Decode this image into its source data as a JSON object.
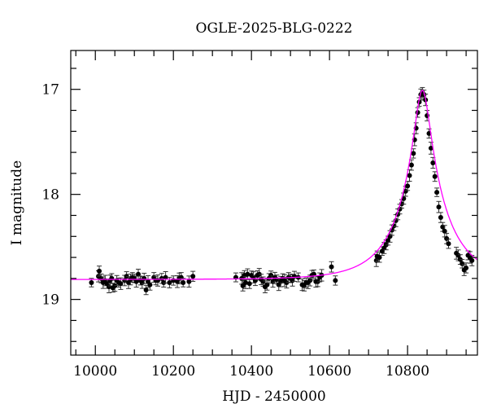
{
  "chart_data": {
    "type": "scatter",
    "title": "OGLE-2025-BLG-0222",
    "xlabel": "HJD - 2450000",
    "ylabel": "I magnitude",
    "xlim": [
      9937,
      10979
    ],
    "ylim": [
      19.53,
      16.63
    ],
    "y_inverted": true,
    "x_ticks": [
      10000,
      10200,
      10400,
      10600,
      10800
    ],
    "x_tick_labels": [
      "10000",
      "10200",
      "10400",
      "10600",
      "10800"
    ],
    "y_ticks": [
      17,
      18,
      19
    ],
    "y_tick_labels": [
      "17",
      "18",
      "19"
    ],
    "grid": false,
    "colors": {
      "points": "#000000",
      "model": "#ff00ff",
      "errorbars": "#333333"
    },
    "model": {
      "type": "point-lens",
      "t0": 10838,
      "u0": 0.16,
      "tE": 120,
      "fs": 0.8,
      "baseline_mag": 18.81
    },
    "points": {
      "x": [
        9990,
        10008,
        10010,
        10015,
        10020,
        10025,
        10030,
        10035,
        10038,
        10042,
        10045,
        10050,
        10055,
        10060,
        10065,
        10075,
        10080,
        10085,
        10090,
        10095,
        10100,
        10105,
        10110,
        10115,
        10120,
        10125,
        10130,
        10135,
        10140,
        10150,
        10155,
        10160,
        10170,
        10175,
        10180,
        10190,
        10200,
        10210,
        10215,
        10220,
        10225,
        10240,
        10250,
        10360,
        10375,
        10378,
        10382,
        10385,
        10390,
        10395,
        10400,
        10405,
        10410,
        10415,
        10420,
        10425,
        10430,
        10435,
        10440,
        10445,
        10450,
        10455,
        10460,
        10465,
        10470,
        10475,
        10480,
        10485,
        10490,
        10495,
        10500,
        10505,
        10510,
        10520,
        10530,
        10535,
        10540,
        10545,
        10550,
        10555,
        10560,
        10565,
        10570,
        10575,
        10580,
        10605,
        10615,
        10720,
        10722,
        10728,
        10735,
        10740,
        10745,
        10750,
        10755,
        10760,
        10765,
        10770,
        10775,
        10780,
        10785,
        10790,
        10795,
        10800,
        10805,
        10810,
        10815,
        10818,
        10822,
        10826,
        10830,
        10834,
        10838,
        10842,
        10846,
        10850,
        10855,
        10860,
        10865,
        10870,
        10875,
        10880,
        10885,
        10890,
        10895,
        10900,
        10905,
        10925,
        10930,
        10935,
        10940,
        10945,
        10950,
        10955,
        10960,
        10965
      ],
      "y": [
        18.84,
        18.78,
        18.73,
        18.8,
        18.84,
        18.82,
        18.85,
        18.88,
        18.82,
        18.8,
        18.89,
        18.87,
        18.82,
        18.84,
        18.85,
        18.82,
        18.78,
        18.84,
        18.81,
        18.79,
        18.8,
        18.83,
        18.76,
        18.82,
        18.84,
        18.8,
        18.91,
        18.83,
        18.86,
        18.79,
        18.82,
        18.82,
        18.8,
        18.84,
        18.79,
        18.84,
        18.82,
        18.83,
        18.8,
        18.79,
        18.84,
        18.83,
        18.78,
        18.79,
        18.8,
        18.87,
        18.77,
        18.84,
        18.76,
        18.85,
        18.77,
        18.79,
        18.82,
        18.77,
        18.76,
        18.81,
        18.83,
        18.88,
        18.86,
        18.8,
        18.77,
        18.83,
        18.79,
        18.81,
        18.86,
        18.83,
        18.8,
        18.82,
        18.84,
        18.79,
        18.8,
        18.82,
        18.78,
        18.79,
        18.86,
        18.87,
        18.84,
        18.84,
        18.82,
        18.77,
        18.76,
        18.83,
        18.83,
        18.79,
        18.77,
        18.69,
        18.82,
        18.63,
        18.59,
        18.6,
        18.54,
        18.51,
        18.48,
        18.44,
        18.4,
        18.34,
        18.3,
        18.25,
        18.19,
        18.14,
        18.09,
        18.04,
        17.97,
        17.92,
        17.82,
        17.72,
        17.61,
        17.48,
        17.37,
        17.22,
        17.12,
        17.05,
        17.03,
        17.05,
        17.1,
        17.25,
        17.42,
        17.56,
        17.7,
        17.83,
        17.98,
        18.12,
        18.22,
        18.31,
        18.35,
        18.42,
        18.47,
        18.56,
        18.58,
        18.62,
        18.66,
        18.72,
        18.7,
        18.58,
        18.6,
        18.63
      ],
      "err": 0.045
    }
  }
}
